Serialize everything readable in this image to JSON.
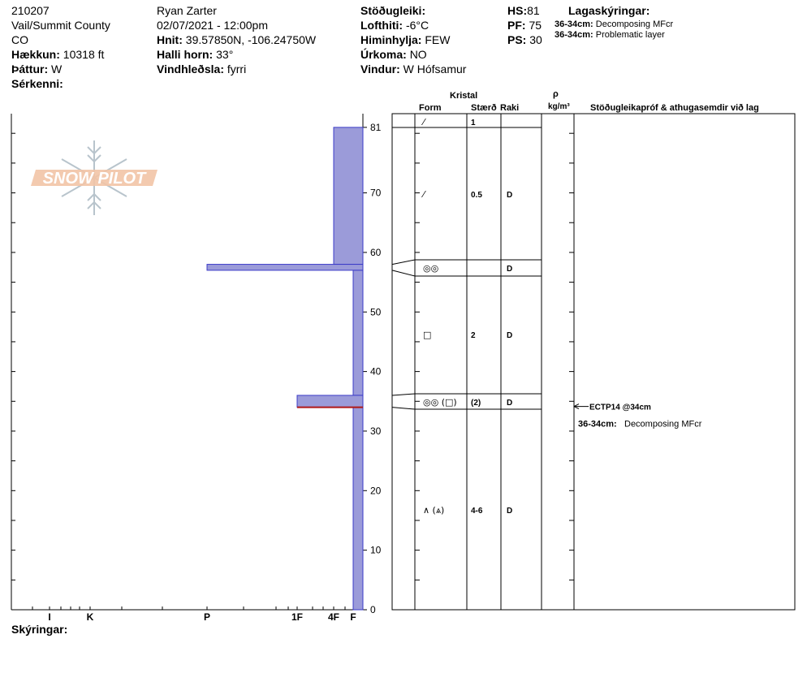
{
  "header": {
    "col1": {
      "id": "210207",
      "location": "Vail/Summit County",
      "state": "CO",
      "elevation_label": "Hækkun:",
      "elevation_value": "10318 ft",
      "aspect_label": "Þáttur:",
      "aspect_value": "W",
      "features_label": "Sérkenni:"
    },
    "col2": {
      "observer": "Ryan Zarter",
      "datetime": "02/07/2021 - 12:00pm",
      "coords_label": "Hnit:",
      "coords_value": "39.57850N, -106.24750W",
      "slope_label": "Halli horn:",
      "slope_value": "33°",
      "wind_load_label": "Vindhleðsla:",
      "wind_load_value": "fyrri"
    },
    "col3": {
      "stability_label": "Stöðugleiki:",
      "air_temp_label": "Lofthiti:",
      "air_temp_value": "-6°C",
      "sky_label": "Himinhylja:",
      "sky_value": "FEW",
      "precip_label": "Úrkoma:",
      "precip_value": "NO",
      "wind_label": "Vindur:",
      "wind_value": "W Hófsamur"
    },
    "col4": {
      "hs_label": "HS:",
      "hs_value": "81",
      "pf_label": "PF:",
      "pf_value": "75",
      "ps_label": "PS:",
      "ps_value": "30"
    },
    "legend": {
      "title": "Lagaskýringar:",
      "items": [
        {
          "range": "36-34cm:",
          "text": "Decomposing MFcr"
        },
        {
          "range": "36-34cm:",
          "text": "Problematic layer"
        }
      ]
    }
  },
  "logo": {
    "text": "SNOW PILOT"
  },
  "table_headers": {
    "kristal": "Kristal",
    "form": "Form",
    "size": "Stærð",
    "moisture": "Raki",
    "rho": "ρ",
    "density_unit": "kg/m³",
    "tests": "Stöðugleikapróf & athugasemdir við lag"
  },
  "footer": {
    "comments_label": "Skýringar:"
  },
  "colors": {
    "hardness_fill": "#9b9bd9",
    "hardness_stroke": "#3b3bc8",
    "problem_line": "#b01818"
  },
  "chart_data": {
    "type": "bar",
    "orientation": "horizontal-hardness-profile",
    "ylim": [
      0,
      81
    ],
    "y_ticks": [
      0,
      10,
      20,
      30,
      40,
      50,
      60,
      70,
      81
    ],
    "x_categories": [
      "I",
      "K",
      "P",
      "1F",
      "4F",
      "F"
    ],
    "layers": [
      {
        "top": 81,
        "bottom": 58,
        "hardness": "4F"
      },
      {
        "top": 58,
        "bottom": 57,
        "hardness": "P"
      },
      {
        "top": 57,
        "bottom": 36,
        "hardness": "F"
      },
      {
        "top": 36,
        "bottom": 34,
        "hardness": "1F"
      },
      {
        "top": 34,
        "bottom": 0,
        "hardness": "F"
      }
    ],
    "problem_layer_cm": 34,
    "layer_table": [
      {
        "y": 81,
        "form": "⁄",
        "size": "1",
        "moisture": ""
      },
      {
        "y": 70,
        "form": "⁄",
        "size": "0.5",
        "moisture": "D"
      },
      {
        "y": 57,
        "form": "◎◎",
        "size": "",
        "moisture": "D"
      },
      {
        "y": 46,
        "form": "□",
        "size": "2",
        "moisture": "D"
      },
      {
        "y": 35,
        "form": "◎◎ (□)",
        "size": "(2)",
        "moisture": "D"
      },
      {
        "y": 17,
        "form": "∧ (⩓)",
        "size": "4-6",
        "moisture": "D"
      }
    ],
    "table_boundaries": [
      81,
      58,
      57,
      36,
      34
    ],
    "tests": {
      "result": "ECTP14 @34cm",
      "comment_range": "36-34cm:",
      "comment_text": "Decomposing MFcr"
    }
  }
}
